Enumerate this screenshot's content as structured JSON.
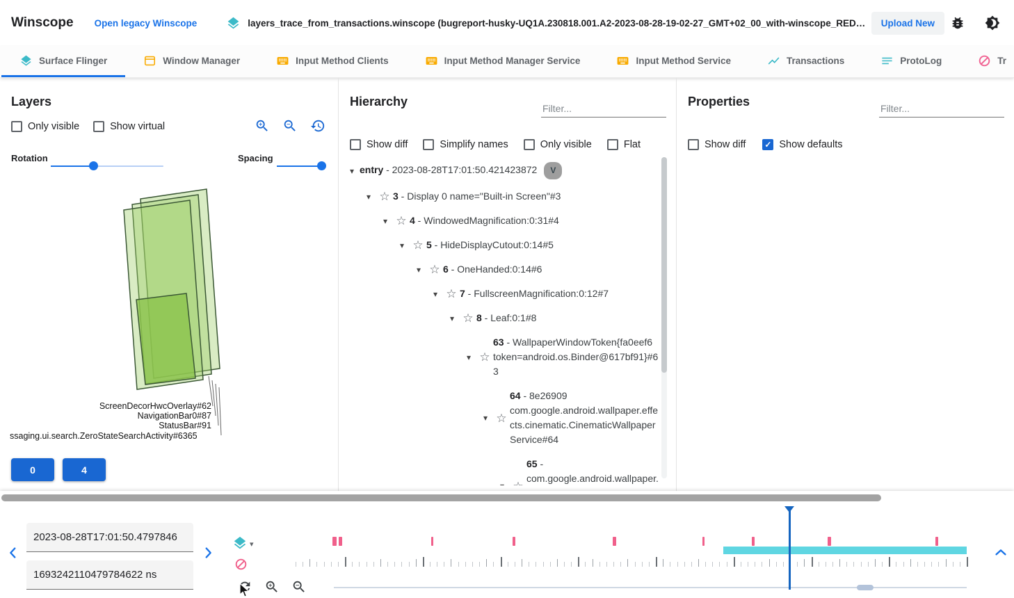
{
  "header": {
    "title": "Winscope",
    "legacy_link": "Open legacy Winscope",
    "file_name": "layers_trace_from_transactions.winscope (bugreport-husky-UQ1A.230818.001.A2-2023-08-28-19-02-27_GMT+02_00_with-winscope_REDACTED.zip)",
    "upload_button": "Upload New"
  },
  "tabs": [
    {
      "label": "Surface Flinger",
      "icon": "layers-icon",
      "color": "#3cbac8",
      "active": true
    },
    {
      "label": "Window Manager",
      "icon": "window-icon",
      "color": "#f9ab00",
      "active": false
    },
    {
      "label": "Input Method Clients",
      "icon": "keyboard-icon",
      "color": "#f9ab00",
      "active": false
    },
    {
      "label": "Input Method Manager Service",
      "icon": "keyboard-icon",
      "color": "#f9ab00",
      "active": false
    },
    {
      "label": "Input Method Service",
      "icon": "keyboard-icon",
      "color": "#f9ab00",
      "active": false
    },
    {
      "label": "Transactions",
      "icon": "chart-icon",
      "color": "#3cbac8",
      "active": false
    },
    {
      "label": "ProtoLog",
      "icon": "list-icon",
      "color": "#3cbac8",
      "active": false
    },
    {
      "label": "Tr",
      "icon": "block-icon",
      "color": "#f06292",
      "active": false
    }
  ],
  "layers_panel": {
    "title": "Layers",
    "checkboxes": [
      {
        "label": "Only visible",
        "checked": false
      },
      {
        "label": "Show virtual",
        "checked": false
      }
    ],
    "rotation_label": "Rotation",
    "spacing_label": "Spacing",
    "layer_labels": [
      "ScreenDecorHwcOverlay#62",
      "NavigationBar0#87",
      "StatusBar#91",
      "ssaging.ui.search.ZeroStateSearchActivity#6365"
    ],
    "display_buttons": [
      "0",
      "4"
    ]
  },
  "hierarchy_panel": {
    "title": "Hierarchy",
    "filter_placeholder": "Filter...",
    "checkboxes": [
      {
        "label": "Show diff",
        "checked": false
      },
      {
        "label": "Simplify names",
        "checked": false
      },
      {
        "label": "Only visible",
        "checked": false
      },
      {
        "label": "Flat",
        "checked": false
      }
    ],
    "tree": [
      {
        "level": 0,
        "id": "entry",
        "label": "- 2023-08-28T17:01:50.421423872",
        "star": false,
        "chip": "V"
      },
      {
        "level": 1,
        "id": "3",
        "label": "- Display 0 name=\"Built-in Screen\"#3",
        "star": true
      },
      {
        "level": 2,
        "id": "4",
        "label": "- WindowedMagnification:0:31#4",
        "star": true
      },
      {
        "level": 3,
        "id": "5",
        "label": "- HideDisplayCutout:0:14#5",
        "star": true
      },
      {
        "level": 4,
        "id": "6",
        "label": "- OneHanded:0:14#6",
        "star": true
      },
      {
        "level": 5,
        "id": "7",
        "label": "- FullscreenMagnification:0:12#7",
        "star": true
      },
      {
        "level": 6,
        "id": "8",
        "label": "- Leaf:0:1#8",
        "star": true
      },
      {
        "level": 7,
        "id": "63",
        "label": "- WallpaperWindowToken{fa0eef6 token=android.os.Binder@617bf91}#63",
        "star": true
      },
      {
        "level": 8,
        "id": "64",
        "label": "- 8e26909 com.google.android.wallpaper.effects.cinematic.CinematicWallpaperService#64",
        "star": true
      },
      {
        "level": 9,
        "id": "65",
        "label": "- com.google.android.wallpaper.effects.cinematic.CinematicWallpaperSer",
        "star": true
      }
    ]
  },
  "properties_panel": {
    "title": "Properties",
    "filter_placeholder": "Filter...",
    "checkboxes": [
      {
        "label": "Show diff",
        "checked": false
      },
      {
        "label": "Show defaults",
        "checked": true
      }
    ]
  },
  "timeline": {
    "timestamp_human": "2023-08-28T17:01:50.4797846",
    "timestamp_ns": "1693242110479784622 ns",
    "markers": [
      {
        "p": 5.5,
        "w": 6
      },
      {
        "p": 6.4,
        "w": 5
      },
      {
        "p": 20.2,
        "w": 3
      },
      {
        "p": 32.3,
        "w": 4
      },
      {
        "p": 47.3,
        "w": 5
      },
      {
        "p": 60.6,
        "w": 3
      },
      {
        "p": 68.0,
        "w": 4
      },
      {
        "p": 79.3,
        "w": 5
      },
      {
        "p": 95.3,
        "w": 4
      }
    ],
    "sf_bar": {
      "start_pct": 63.7,
      "end_pct": 100
    },
    "cursor_pct": 73.6,
    "range_thumb_pct": 84
  },
  "colors": {
    "accent_blue": "#1a73e8",
    "button_blue": "#1967d2",
    "teal": "#3cbac8",
    "orange": "#f9ab00",
    "pink": "#f0608b",
    "cyan": "#5fd6e2",
    "layer_green": "#9ccc65"
  }
}
